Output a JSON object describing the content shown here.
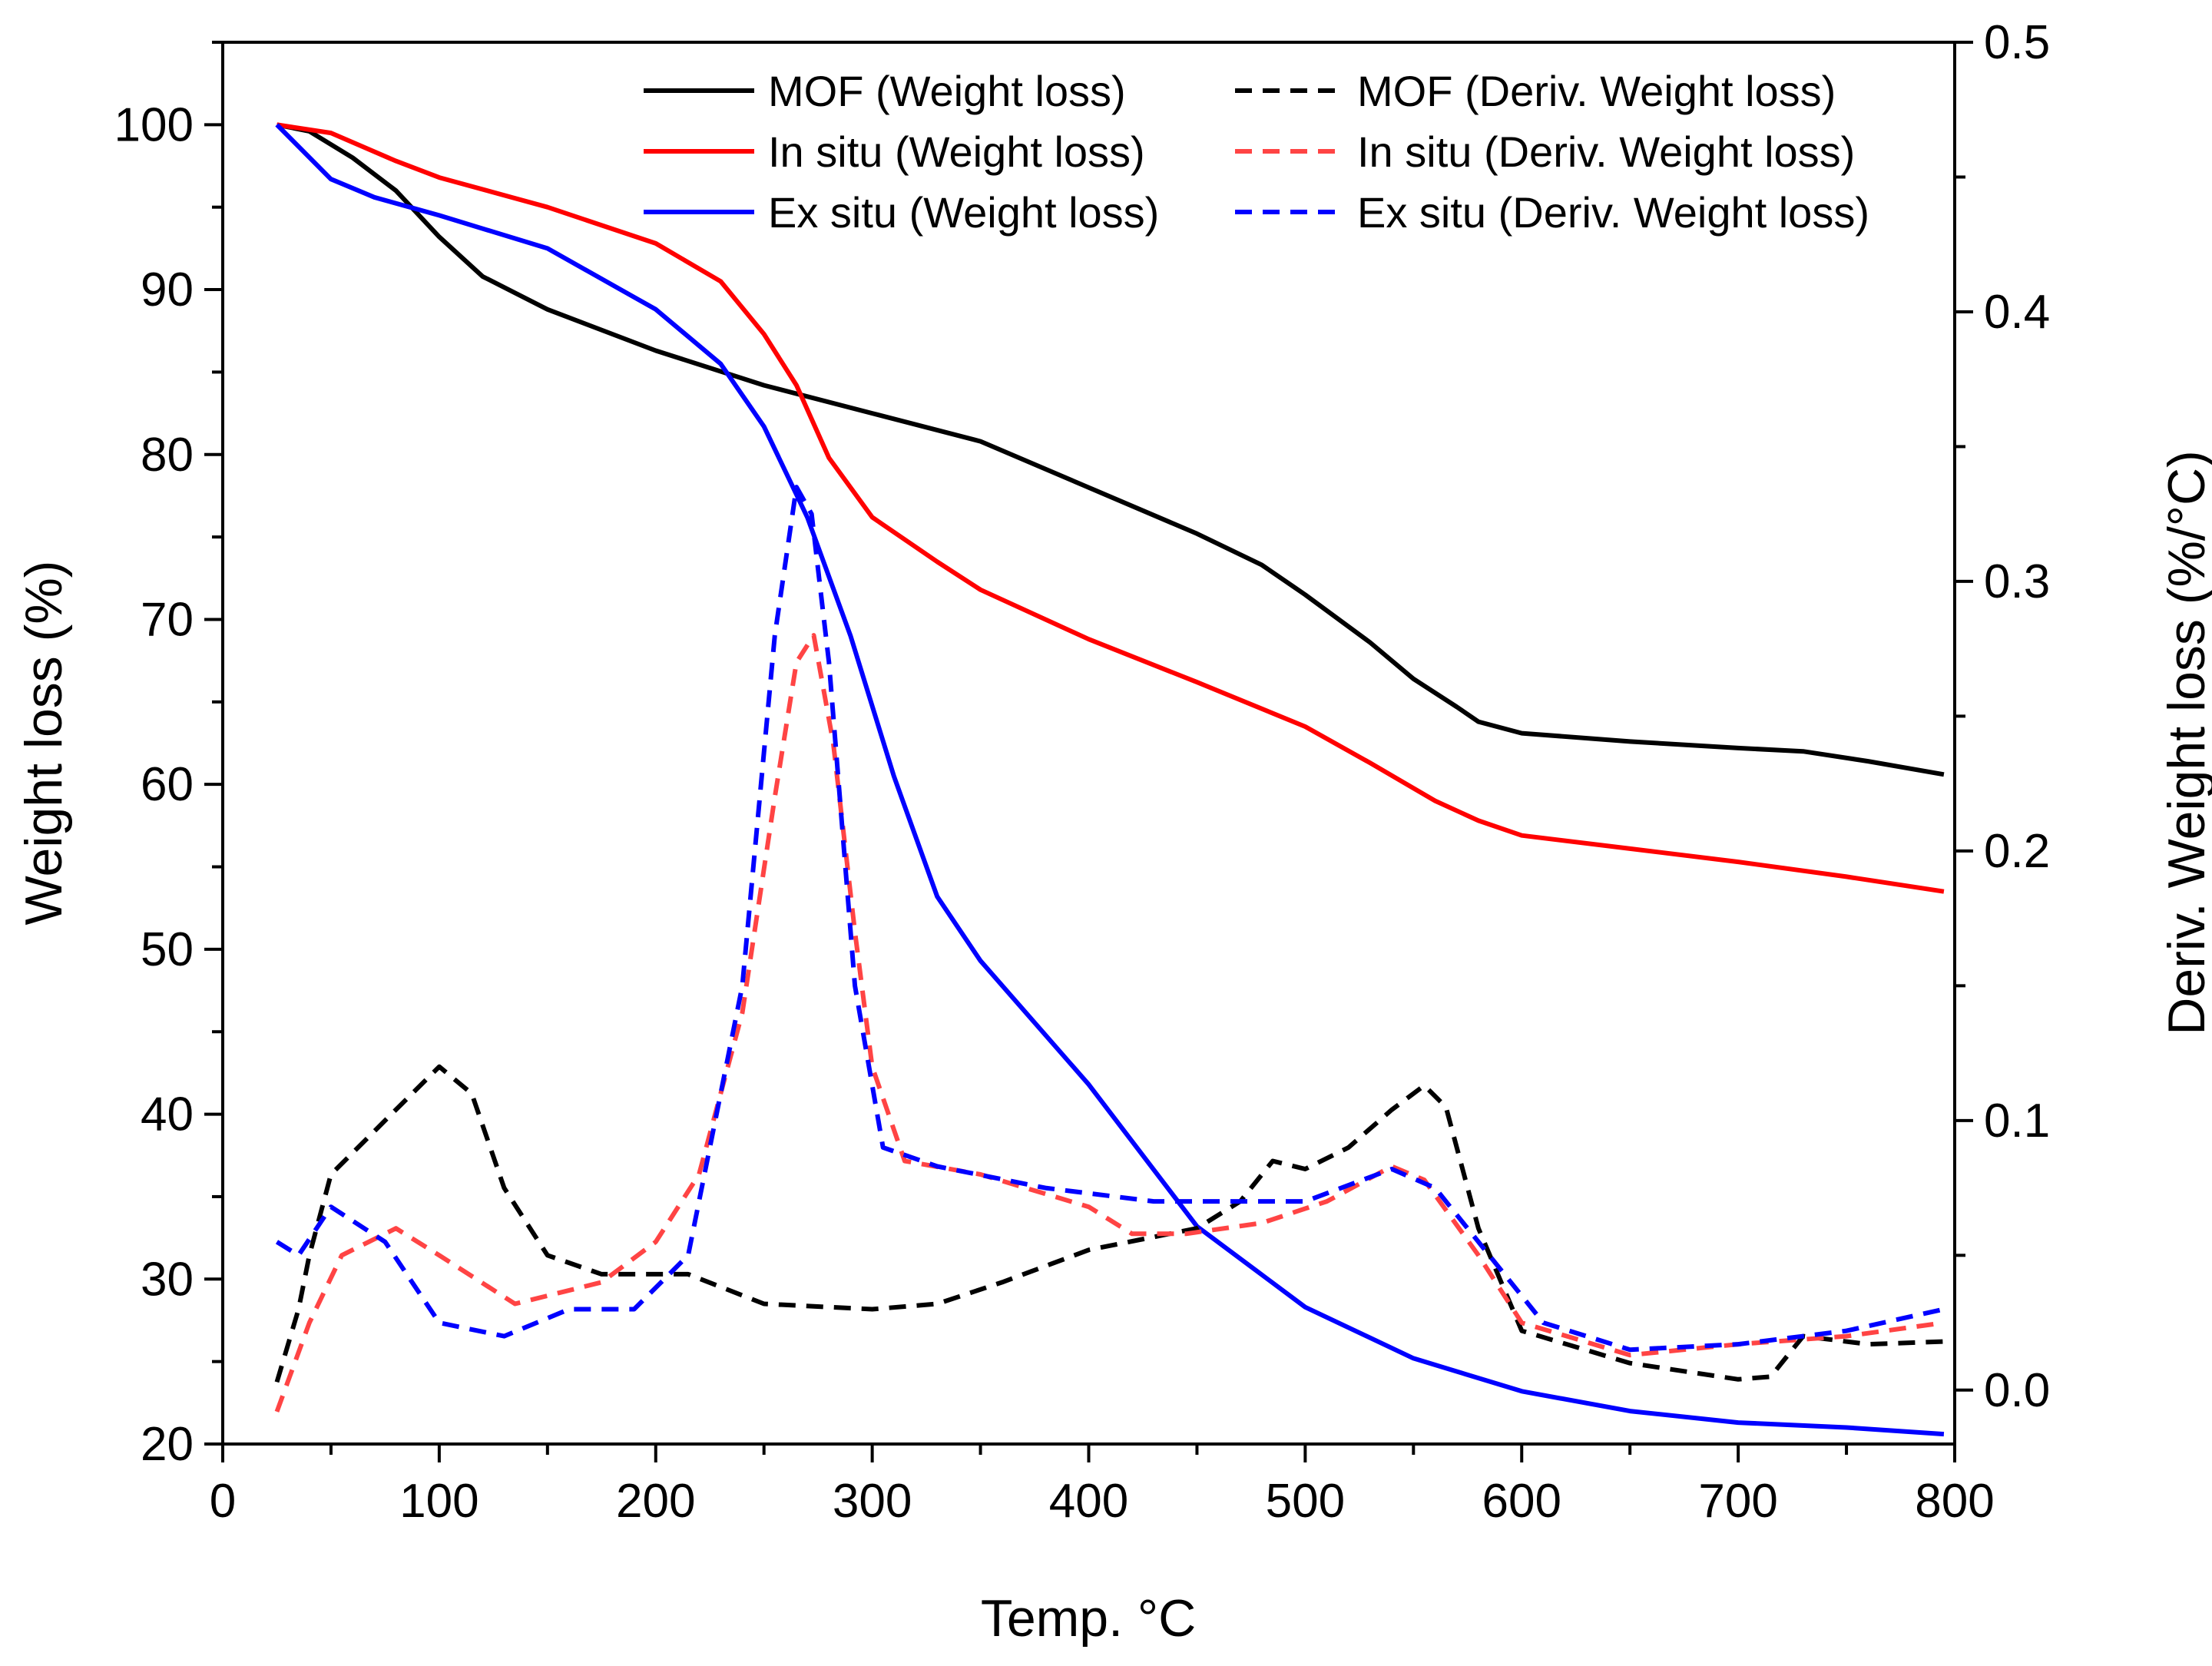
{
  "chart_data": {
    "type": "line",
    "title": "",
    "xlabel": "Temp. °C",
    "ylabel": "Weight loss (%)",
    "y2label": "Deriv. Weight loss (%/°C)",
    "xlim": [
      0,
      800
    ],
    "ylim": [
      20,
      105
    ],
    "y2lim": [
      -0.02,
      0.5
    ],
    "xticks": [
      "0",
      "100",
      "200",
      "300",
      "400",
      "500",
      "600",
      "700",
      "800"
    ],
    "yticks": [
      "20",
      "30",
      "40",
      "50",
      "60",
      "70",
      "80",
      "90",
      "100"
    ],
    "y2ticks": [
      "0.0",
      "0.1",
      "0.2",
      "0.3",
      "0.4",
      "0.5"
    ],
    "legend_position": "top-right",
    "series": [
      {
        "name": "MOF (Weight loss)",
        "axis": "left",
        "style": "solid",
        "color": "#000000",
        "x": [
          25,
          40,
          60,
          80,
          100,
          120,
          150,
          200,
          250,
          300,
          350,
          400,
          450,
          480,
          500,
          530,
          550,
          570,
          580,
          600,
          650,
          700,
          730,
          760,
          795
        ],
        "y": [
          100,
          99.6,
          98,
          96,
          93.2,
          90.8,
          88.8,
          86.3,
          84.2,
          82.5,
          80.8,
          78,
          75.2,
          73.3,
          71.5,
          68.6,
          66.4,
          64.7,
          63.8,
          63.1,
          62.6,
          62.2,
          62,
          61.4,
          60.6
        ]
      },
      {
        "name": "In situ (Weight loss)",
        "axis": "left",
        "style": "solid",
        "color": "#ff0000",
        "x": [
          25,
          50,
          80,
          100,
          150,
          200,
          230,
          250,
          265,
          280,
          300,
          330,
          350,
          400,
          450,
          500,
          530,
          560,
          580,
          600,
          650,
          700,
          750,
          795
        ],
        "y": [
          100,
          99.5,
          97.8,
          96.8,
          95,
          92.8,
          90.5,
          87.3,
          84.2,
          79.8,
          76.2,
          73.5,
          71.8,
          68.8,
          66.2,
          63.5,
          61.3,
          59,
          57.8,
          56.9,
          56.1,
          55.3,
          54.4,
          53.5
        ]
      },
      {
        "name": "Ex situ (Weight loss)",
        "axis": "left",
        "style": "solid",
        "color": "#0000ff",
        "x": [
          25,
          50,
          70,
          100,
          150,
          200,
          230,
          250,
          270,
          290,
          310,
          330,
          350,
          400,
          450,
          500,
          550,
          600,
          650,
          700,
          750,
          795
        ],
        "y": [
          100,
          96.7,
          95.6,
          94.5,
          92.5,
          88.8,
          85.5,
          81.7,
          76.2,
          69,
          60.5,
          53.2,
          49.3,
          41.8,
          33.2,
          28.3,
          25.2,
          23.2,
          22,
          21.3,
          21,
          20.6
        ]
      },
      {
        "name": "MOF (Deriv. Weight loss)",
        "axis": "right",
        "style": "dashed",
        "color": "#000000",
        "x": [
          25,
          35,
          40,
          50,
          75,
          100,
          115,
          130,
          150,
          175,
          200,
          215,
          250,
          300,
          330,
          360,
          400,
          450,
          470,
          485,
          500,
          520,
          540,
          555,
          565,
          580,
          600,
          650,
          700,
          715,
          730,
          760,
          795
        ],
        "y": [
          0.003,
          0.03,
          0.05,
          0.08,
          0.1,
          0.12,
          0.11,
          0.075,
          0.05,
          0.043,
          0.043,
          0.043,
          0.032,
          0.03,
          0.032,
          0.04,
          0.052,
          0.06,
          0.07,
          0.085,
          0.082,
          0.09,
          0.104,
          0.113,
          0.105,
          0.06,
          0.022,
          0.01,
          0.004,
          0.005,
          0.02,
          0.017,
          0.018
        ]
      },
      {
        "name": "In situ (Deriv. Weight loss)",
        "axis": "right",
        "style": "dashed",
        "color": "#ff4444",
        "x": [
          25,
          40,
          55,
          80,
          100,
          135,
          175,
          200,
          220,
          240,
          255,
          265,
          273,
          282,
          292,
          300,
          315,
          350,
          400,
          420,
          445,
          480,
          510,
          540,
          555,
          580,
          600,
          650,
          700,
          750,
          795
        ],
        "y": [
          -0.008,
          0.025,
          0.05,
          0.06,
          0.05,
          0.032,
          0.04,
          0.055,
          0.08,
          0.14,
          0.22,
          0.27,
          0.28,
          0.24,
          0.17,
          0.12,
          0.085,
          0.08,
          0.068,
          0.058,
          0.058,
          0.062,
          0.07,
          0.083,
          0.078,
          0.05,
          0.025,
          0.013,
          0.017,
          0.02,
          0.025
        ]
      },
      {
        "name": "Ex situ (Deriv. Weight loss)",
        "axis": "right",
        "style": "dashed",
        "color": "#0000ff",
        "x": [
          25,
          35,
          50,
          75,
          100,
          130,
          160,
          190,
          215,
          240,
          255,
          265,
          272,
          280,
          292,
          305,
          330,
          380,
          430,
          500,
          540,
          560,
          580,
          610,
          650,
          700,
          750,
          795
        ],
        "y": [
          0.055,
          0.05,
          0.068,
          0.055,
          0.025,
          0.02,
          0.03,
          0.03,
          0.05,
          0.15,
          0.28,
          0.335,
          0.325,
          0.27,
          0.15,
          0.09,
          0.083,
          0.075,
          0.07,
          0.07,
          0.082,
          0.075,
          0.055,
          0.025,
          0.015,
          0.017,
          0.022,
          0.03
        ]
      }
    ]
  }
}
